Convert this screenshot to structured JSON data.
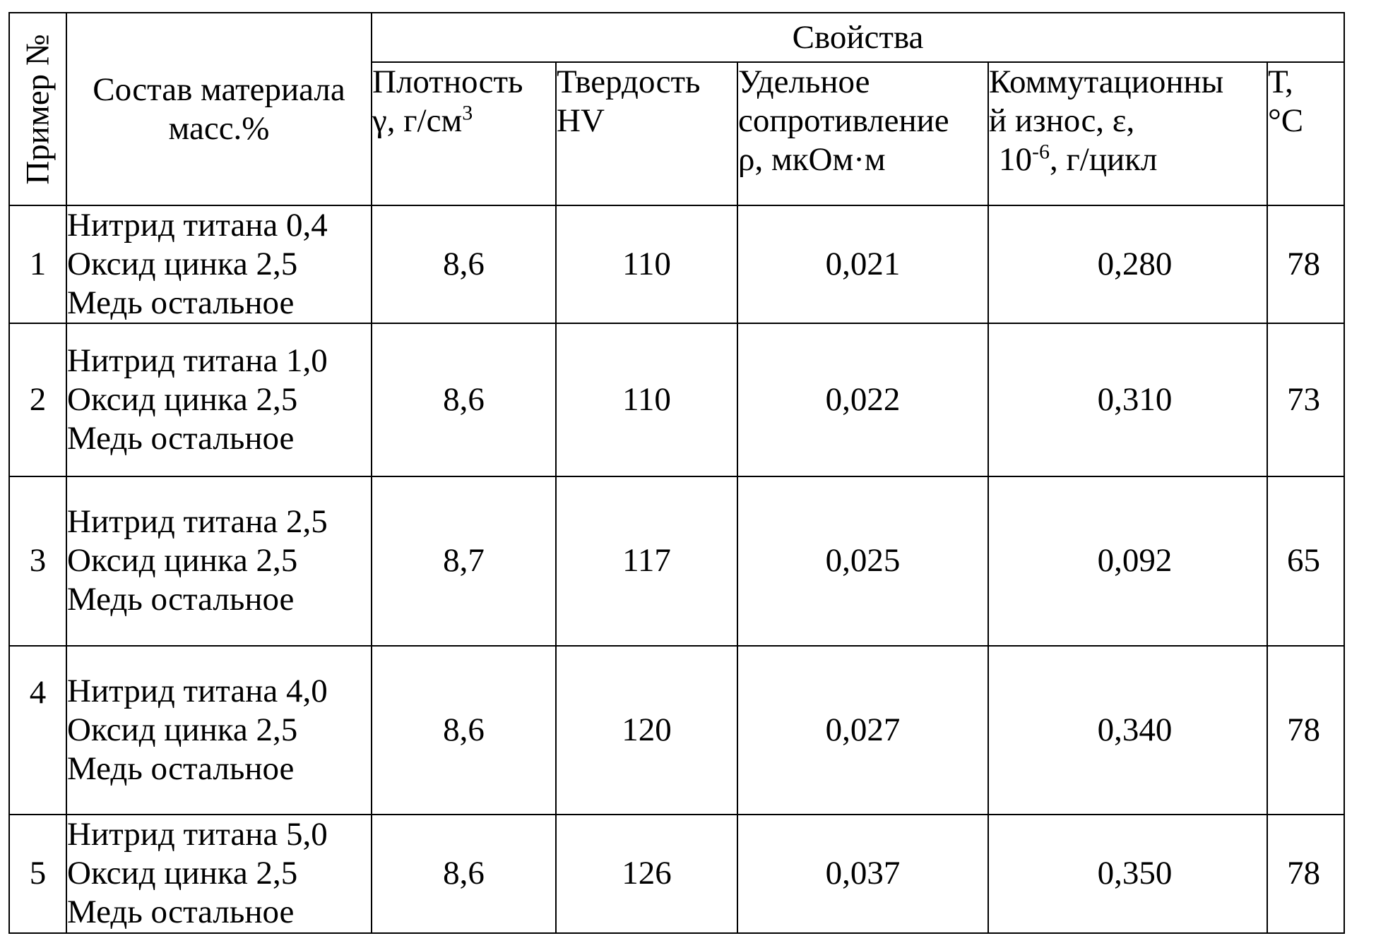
{
  "table": {
    "header": {
      "example_no": "Пример №",
      "composition": "Состав материала масс.%",
      "properties": "Свойства",
      "density": {
        "line1": "Плотность",
        "line2": "γ, г/см",
        "sup": "3"
      },
      "hardness": {
        "line1": "Твердость",
        "line2": "HV"
      },
      "resistivity": {
        "line1": "Удельное",
        "line2": "сопротивление",
        "line3": "ρ, мкОм·м"
      },
      "wear": {
        "line1": "Коммутационны",
        "line2": "й износ, ε,",
        "line3_base": "10",
        "line3_sup": "-6",
        "line3_rest": ", г/цикл"
      },
      "temperature": {
        "line1": "Т,",
        "line2": "°С"
      }
    },
    "rows": [
      {
        "no": "1",
        "composition": [
          "Нитрид титана 0,4",
          "Оксид цинка 2,5",
          "Медь остальное"
        ],
        "density": "8,6",
        "hardness": "110",
        "resistivity": "0,021",
        "wear": "0,280",
        "temperature": "78"
      },
      {
        "no": "2",
        "composition": [
          "Нитрид титана 1,0",
          "Оксид цинка 2,5",
          "Медь остальное"
        ],
        "density": "8,6",
        "hardness": "110",
        "resistivity": "0,022",
        "wear": "0,310",
        "temperature": "73"
      },
      {
        "no": "3",
        "composition": [
          "Нитрид титана 2,5",
          "Оксид цинка 2,5",
          "Медь остальное"
        ],
        "density": "8,7",
        "hardness": "117",
        "resistivity": "0,025",
        "wear": "0,092",
        "temperature": "65"
      },
      {
        "no": "4",
        "composition": [
          "Нитрид титана 4,0",
          "Оксид цинка 2,5",
          "Медь остальное"
        ],
        "density": "8,6",
        "hardness": "120",
        "resistivity": "0,027",
        "wear": "0,340",
        "temperature": "78"
      },
      {
        "no": "5",
        "composition": [
          "Нитрид титана 5,0",
          "Оксид цинка 2,5",
          "Медь остальное"
        ],
        "density": "8,6",
        "hardness": "126",
        "resistivity": "0,037",
        "wear": "0,350",
        "temperature": "78"
      }
    ]
  }
}
